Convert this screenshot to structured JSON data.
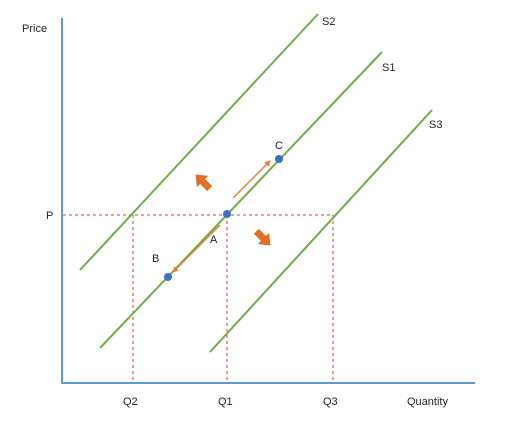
{
  "axes": {
    "y_label": "Price",
    "x_label": "Quantity"
  },
  "price_label": "P",
  "quantity_ticks": [
    "Q2",
    "Q1",
    "Q3"
  ],
  "curves": [
    {
      "label": "S2"
    },
    {
      "label": "S1"
    },
    {
      "label": "S3"
    }
  ],
  "points": [
    {
      "label": "A"
    },
    {
      "label": "B"
    },
    {
      "label": "C"
    }
  ],
  "colors": {
    "axis": "#5b9bd5",
    "supply_line": "#70ad47",
    "guide": "#e23b3b",
    "point": "#3a6fc4",
    "small_arrow": "#ed7d31",
    "shift_arrow": "#e07026"
  }
}
